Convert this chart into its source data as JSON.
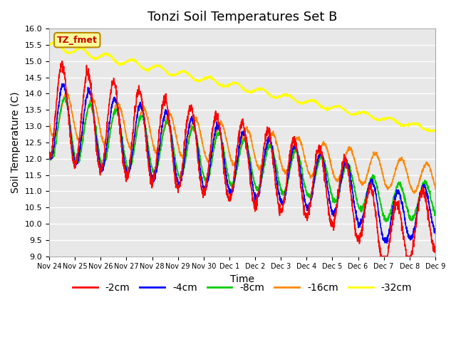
{
  "title": "Tonzi Soil Temperatures Set B",
  "xlabel": "Time",
  "ylabel": "Soil Temperature (C)",
  "ylim": [
    9.0,
    16.0
  ],
  "yticks": [
    9.0,
    9.5,
    10.0,
    10.5,
    11.0,
    11.5,
    12.0,
    12.5,
    13.0,
    13.5,
    14.0,
    14.5,
    15.0,
    15.5,
    16.0
  ],
  "xtick_labels": [
    "Nov 24",
    "Nov 25",
    "Nov 26",
    "Nov 27",
    "Nov 28",
    "Nov 29",
    "Nov 30",
    "Dec 1",
    "Dec 2",
    "Dec 3",
    "Dec 4",
    "Dec 5",
    "Dec 6",
    "Dec 7",
    "Dec 8",
    "Dec 9"
  ],
  "legend_labels": [
    "-2cm",
    "-4cm",
    "-8cm",
    "-16cm",
    "-32cm"
  ],
  "line_colors": [
    "#ff0000",
    "#0000ff",
    "#00cc00",
    "#ff8800",
    "#ffff00"
  ],
  "bg_color": "#e8e8e8",
  "annotation_text": "TZ_fmet",
  "annotation_color": "#cc0000",
  "annotation_bg": "#ffff99",
  "title_fontsize": 13,
  "axis_fontsize": 10,
  "tick_fontsize": 8
}
